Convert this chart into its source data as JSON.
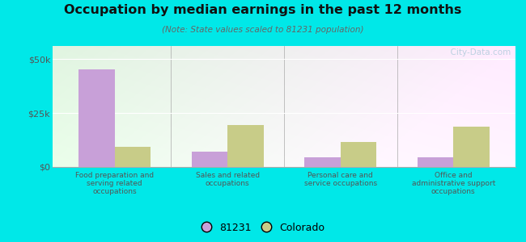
{
  "title": "Occupation by median earnings in the past 12 months",
  "subtitle": "(Note: State values scaled to 81231 population)",
  "categories": [
    "Food preparation and\nserving related\noccupations",
    "Sales and related\noccupations",
    "Personal care and\nservice occupations",
    "Office and\nadministrative support\noccupations"
  ],
  "values_81231": [
    45000,
    7000,
    4500,
    4500
  ],
  "values_colorado": [
    9500,
    19500,
    11500,
    18500
  ],
  "color_81231": "#c8a0d8",
  "color_colorado": "#c8cc88",
  "ylim": [
    0,
    56000
  ],
  "yticks": [
    0,
    25000,
    50000
  ],
  "ytick_labels": [
    "$0",
    "$25k",
    "$50k"
  ],
  "bg_color_outer": "#00e8e8",
  "bar_width": 0.32,
  "legend_label_81231": "81231",
  "legend_label_colorado": "Colorado",
  "watermark": "  City-Data.com"
}
